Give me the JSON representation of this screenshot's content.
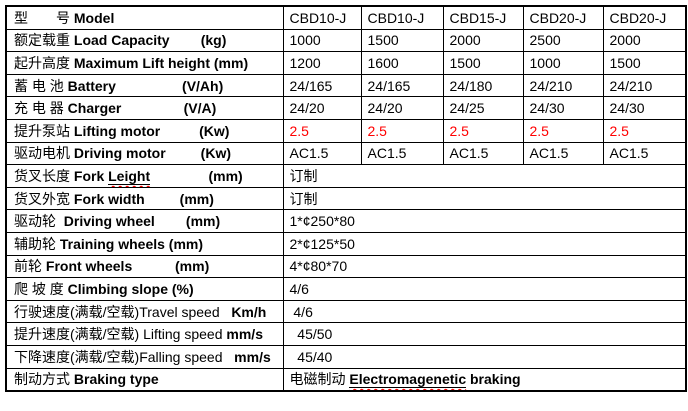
{
  "colors": {
    "highlight_red": "#ff0000",
    "border_black": "#000000",
    "background": "#ffffff"
  },
  "table": {
    "rows": [
      {
        "label": [
          {
            "t": "型　　号 "
          },
          {
            "t": "Model",
            "b": true
          }
        ],
        "values": [
          "CBD10-J",
          "CBD10-J",
          "CBD15-J",
          "CBD20-J",
          "CBD20-J"
        ]
      },
      {
        "label": [
          {
            "t": "额定载重 "
          },
          {
            "t": "Load Capacity        (kg)",
            "b": true
          }
        ],
        "values": [
          "1000",
          "1500",
          "2000",
          "2500",
          "2000"
        ]
      },
      {
        "label": [
          {
            "t": "起升高度 "
          },
          {
            "t": "Maximum Lift height (mm)",
            "b": true
          }
        ],
        "values": [
          "1200",
          "1600",
          "1500",
          "1000",
          "1500"
        ]
      },
      {
        "label": [
          {
            "t": "蓄 电 池 "
          },
          {
            "t": "Battery                 (V/Ah)",
            "b": true
          }
        ],
        "values": [
          "24/165",
          "24/165",
          "24/180",
          "24/210",
          "24/210"
        ]
      },
      {
        "label": [
          {
            "t": "充 电 器 "
          },
          {
            "t": "Charger                (V/A)",
            "b": true
          }
        ],
        "values": [
          "24/20",
          "24/20",
          "24/25",
          "24/30",
          "24/30"
        ]
      },
      {
        "label": [
          {
            "t": "提升泵站 "
          },
          {
            "t": "Lifting motor          (Kw)",
            "b": true
          }
        ],
        "values": [
          "2.5",
          "2.5",
          "2.5",
          "2.5",
          "2.5"
        ],
        "red": true
      },
      {
        "label": [
          {
            "t": "驱动电机 "
          },
          {
            "t": "Driving motor         (Kw)",
            "b": true
          }
        ],
        "values": [
          "AC1.5",
          "AC1.5",
          "AC1.5",
          "AC1.5",
          "AC1.5"
        ]
      },
      {
        "label": [
          {
            "t": "货叉长度 "
          },
          {
            "t": "Fork ",
            "b": true
          },
          {
            "t": "Leight",
            "b": true,
            "u": true,
            "sq": true
          },
          {
            "t": "               (mm)",
            "b": true
          }
        ],
        "merged": [
          {
            "t": "订制"
          }
        ]
      },
      {
        "label": [
          {
            "t": "货叉外宽 "
          },
          {
            "t": "Fork width         (mm)",
            "b": true
          }
        ],
        "merged": [
          {
            "t": "订制"
          }
        ]
      },
      {
        "label": [
          {
            "t": "驱动轮  "
          },
          {
            "t": "Driving wheel        (mm)",
            "b": true
          }
        ],
        "merged": [
          {
            "t": "1*¢250*80"
          }
        ]
      },
      {
        "label": [
          {
            "t": "辅助轮 "
          },
          {
            "t": "Training wheels (mm)",
            "b": true
          }
        ],
        "merged": [
          {
            "t": "2*¢125*50"
          }
        ]
      },
      {
        "label": [
          {
            "t": "前轮 "
          },
          {
            "t": "Front wheels           (mm)",
            "b": true
          }
        ],
        "merged": [
          {
            "t": "4*¢80*70"
          }
        ]
      },
      {
        "label": [
          {
            "t": "爬 坡 度 "
          },
          {
            "t": "Climbing slope (%)",
            "b": true
          }
        ],
        "merged": [
          {
            "t": "4/6"
          }
        ]
      },
      {
        "label": [
          {
            "t": "行驶速度(满载/空载)"
          },
          {
            "t": "Travel speed   "
          },
          {
            "t": "Km/h",
            "b": true
          }
        ],
        "merged": [
          {
            "t": " 4/6"
          }
        ]
      },
      {
        "label": [
          {
            "t": "提升速度(满载/空载) "
          },
          {
            "t": "Lifting speed "
          },
          {
            "t": "mm/s",
            "b": true
          }
        ],
        "merged": [
          {
            "t": "  45/50"
          }
        ]
      },
      {
        "label": [
          {
            "t": "下降速度(满载/空载)"
          },
          {
            "t": "Falling speed   "
          },
          {
            "t": "mm/s",
            "b": true
          }
        ],
        "merged": [
          {
            "t": "  45/40"
          }
        ]
      },
      {
        "label": [
          {
            "t": "制动方式 "
          },
          {
            "t": "Braking type",
            "b": true
          }
        ],
        "merged": [
          {
            "t": "电磁制动 "
          },
          {
            "t": "Electromagenetic",
            "b": true,
            "u": true,
            "sq": true
          },
          {
            "t": " braking",
            "b": true
          }
        ]
      }
    ]
  }
}
